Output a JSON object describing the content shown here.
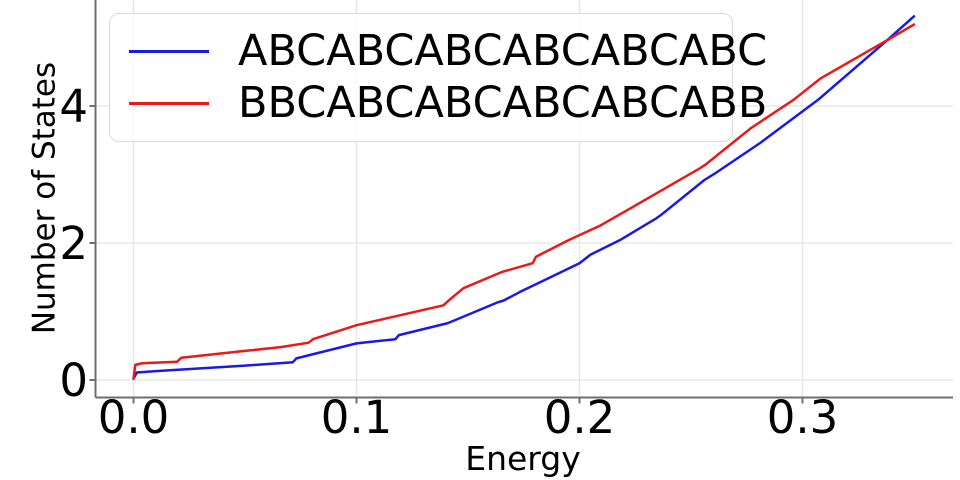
{
  "chart_data": {
    "type": "line",
    "title": "",
    "xlabel": "Energy",
    "ylabel": "Number of States",
    "xlim": [
      -0.017,
      0.371
    ],
    "ylim": [
      0,
      5.55
    ],
    "x_ticks": [
      0.0,
      0.1,
      0.2,
      0.3
    ],
    "x_tick_labels": [
      "0.0",
      "0.1",
      "0.2",
      "0.3"
    ],
    "y_ticks": [
      0,
      2,
      4
    ],
    "y_tick_labels": [
      "0",
      "2",
      "4"
    ],
    "grid": true,
    "grid_color": "#e8e8e8",
    "spine_color": "#6e6e6e",
    "legend_position": "upper-left",
    "series": [
      {
        "name": "ABCABCABCABCABCABC",
        "color": "#1a1ae8",
        "points": [
          [
            0.0,
            0.02
          ],
          [
            0.0015,
            0.11
          ],
          [
            0.01,
            0.13
          ],
          [
            0.03,
            0.17
          ],
          [
            0.05,
            0.21
          ],
          [
            0.07,
            0.255
          ],
          [
            0.0715,
            0.26
          ],
          [
            0.073,
            0.315
          ],
          [
            0.1,
            0.535
          ],
          [
            0.1175,
            0.595
          ],
          [
            0.119,
            0.655
          ],
          [
            0.141,
            0.83
          ],
          [
            0.163,
            1.13
          ],
          [
            0.166,
            1.16
          ],
          [
            0.173,
            1.28
          ],
          [
            0.2,
            1.705
          ],
          [
            0.205,
            1.83
          ],
          [
            0.218,
            2.04
          ],
          [
            0.2345,
            2.36
          ],
          [
            0.237,
            2.42
          ],
          [
            0.256,
            2.92
          ],
          [
            0.2615,
            3.03
          ],
          [
            0.281,
            3.46
          ],
          [
            0.307,
            4.09
          ],
          [
            0.338,
            4.96
          ],
          [
            0.35,
            5.31
          ]
        ]
      },
      {
        "name": "BBCABCABCABCABCABB",
        "color": "#e81a1a",
        "points": [
          [
            0.0,
            0.02
          ],
          [
            0.0008,
            0.22
          ],
          [
            0.004,
            0.245
          ],
          [
            0.0195,
            0.265
          ],
          [
            0.0215,
            0.325
          ],
          [
            0.05,
            0.425
          ],
          [
            0.066,
            0.48
          ],
          [
            0.0785,
            0.545
          ],
          [
            0.0805,
            0.595
          ],
          [
            0.1,
            0.8
          ],
          [
            0.139,
            1.09
          ],
          [
            0.1415,
            1.165
          ],
          [
            0.148,
            1.34
          ],
          [
            0.165,
            1.575
          ],
          [
            0.179,
            1.705
          ],
          [
            0.1805,
            1.8
          ],
          [
            0.195,
            2.04
          ],
          [
            0.209,
            2.25
          ],
          [
            0.2215,
            2.48
          ],
          [
            0.254,
            3.09
          ],
          [
            0.2565,
            3.145
          ],
          [
            0.277,
            3.68
          ],
          [
            0.296,
            4.09
          ],
          [
            0.308,
            4.4
          ],
          [
            0.338,
            4.96
          ],
          [
            0.35,
            5.19
          ]
        ]
      }
    ]
  }
}
